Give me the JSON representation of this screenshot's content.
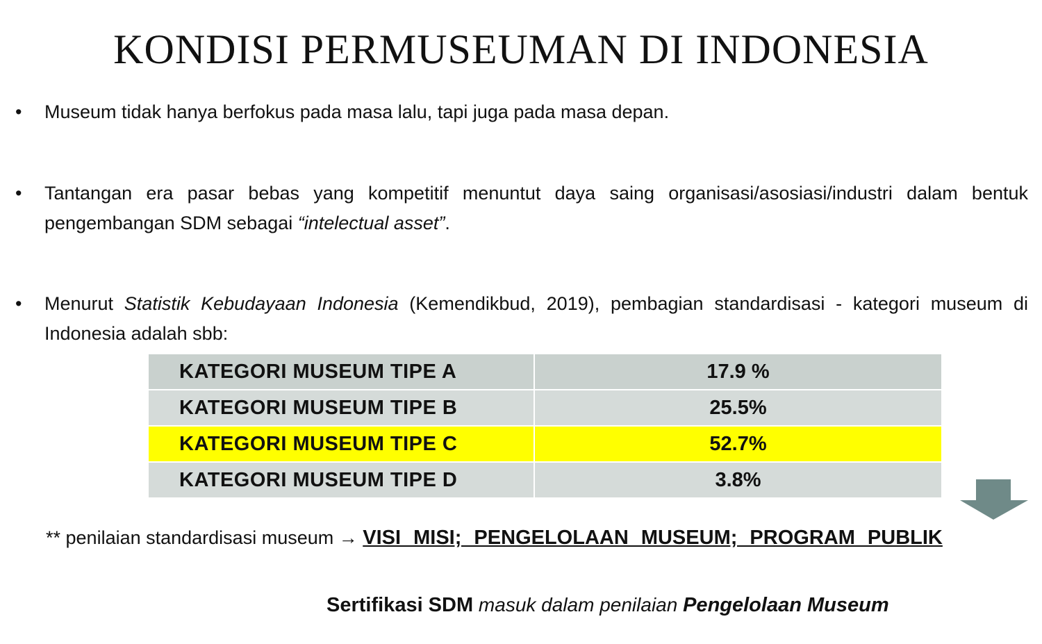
{
  "title": "KONDISI PERMUSEUMAN DI INDONESIA",
  "bullets": [
    {
      "text": "Museum tidak hanya berfokus pada masa lalu, tapi juga pada masa depan."
    },
    {
      "text": "Tantangan era pasar bebas yang kompetitif menuntut daya saing organisasi/asosiasi/industri dalam bentuk pengembangan SDM sebagai ",
      "italic": "“intelectual asset”",
      "end": "."
    },
    {
      "pre": "Menurut ",
      "italic": "Statistik Kebudayaan Indonesia",
      "text": " (Kemendikbud, 2019), pembagian standardisasi - kategori museum di Indonesia adalah sbb:"
    }
  ],
  "bullet_symbol": "•",
  "table": {
    "rows": [
      {
        "category": "KATEGORI MUSEUM TIPE A",
        "value": "17.9 %"
      },
      {
        "category": "KATEGORI MUSEUM TIPE B",
        "value": "25.5%"
      },
      {
        "category": "KATEGORI MUSEUM TIPE C",
        "value": "52.7%",
        "highlight": "#ffff00"
      },
      {
        "category": "KATEGORI MUSEUM TIPE D",
        "value": "3.8%"
      }
    ]
  },
  "note": {
    "stars": "**",
    "text": " penilaian standardisasi museum ",
    "arrow": "→",
    "link": "VISI MISI; PENGELOLAAN MUSEUM; PROGRAM PUBLIK"
  },
  "certification": {
    "bold1": "Sertifikasi SDM",
    "italic": " masuk dalam penilaian ",
    "bold2": "Pengelolaan Museum"
  },
  "colors": {
    "highlight": "#ffff00",
    "arrow": "#6f8a88",
    "row_gray": "#d5dbd9"
  }
}
